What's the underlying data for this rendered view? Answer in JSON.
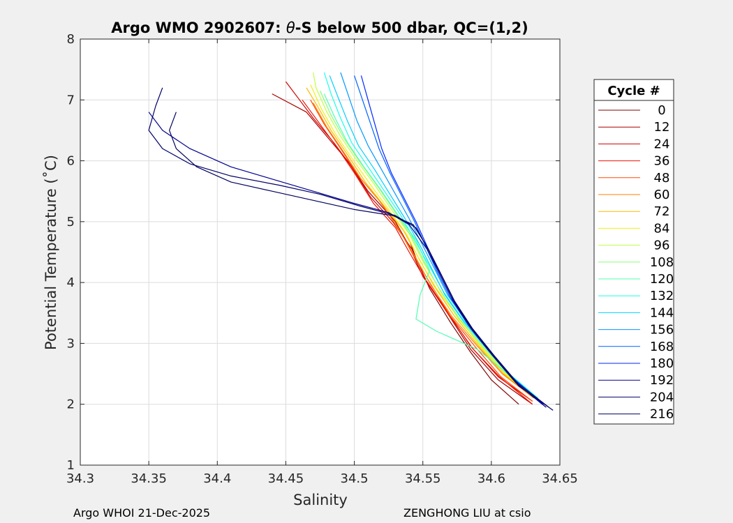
{
  "chart_data": {
    "type": "line",
    "title_prefix": "Argo WMO 2902607: ",
    "title_symbol": "θ",
    "title_suffix": "-S below 500 dbar,  QC=(1,2)",
    "xlabel": "Salinity",
    "ylabel": "Potential Temperature (˚C)",
    "xlim": [
      34.3,
      34.65
    ],
    "ylim": [
      1,
      8
    ],
    "xticks": [
      34.3,
      34.35,
      34.4,
      34.45,
      34.5,
      34.55,
      34.6,
      34.65
    ],
    "xtick_labels": [
      "34.3",
      "34.35",
      "34.4",
      "34.45",
      "34.5",
      "34.55",
      "34.6",
      "34.65"
    ],
    "yticks": [
      1,
      2,
      3,
      4,
      5,
      6,
      7,
      8
    ],
    "ytick_labels": [
      "1",
      "2",
      "3",
      "4",
      "5",
      "6",
      "7",
      "8"
    ],
    "grid": true,
    "legend_title": "Cycle #",
    "legend_position": "outside-right",
    "legend": [
      {
        "label": "0",
        "color": "#800000"
      },
      {
        "label": "12",
        "color": "#a80000"
      },
      {
        "label": "24",
        "color": "#d00000"
      },
      {
        "label": "36",
        "color": "#f01000"
      },
      {
        "label": "48",
        "color": "#ff4800"
      },
      {
        "label": "60",
        "color": "#ff8000"
      },
      {
        "label": "72",
        "color": "#ffb800"
      },
      {
        "label": "84",
        "color": "#f0f010"
      },
      {
        "label": "96",
        "color": "#c0ff40"
      },
      {
        "label": "108",
        "color": "#88ff78"
      },
      {
        "label": "120",
        "color": "#50ffb0"
      },
      {
        "label": "132",
        "color": "#18ffe8"
      },
      {
        "label": "144",
        "color": "#00d0ff"
      },
      {
        "label": "156",
        "color": "#0098ff"
      },
      {
        "label": "168",
        "color": "#0060ff"
      },
      {
        "label": "180",
        "color": "#0028ff"
      },
      {
        "label": "192",
        "color": "#0000f0",
        "line_color": "#00008f"
      },
      {
        "label": "204",
        "color": "#0000c8",
        "line_color": "#00006a"
      },
      {
        "label": "216",
        "color": "#0000a0",
        "line_color": "#000060"
      }
    ],
    "series": [
      {
        "name": "0",
        "color": "#800000",
        "points": [
          [
            34.62,
            2.0
          ],
          [
            34.6,
            2.4
          ],
          [
            34.585,
            2.85
          ],
          [
            34.57,
            3.35
          ],
          [
            34.555,
            3.9
          ],
          [
            34.545,
            4.4
          ],
          [
            34.54,
            4.7
          ]
        ]
      },
      {
        "name": "12",
        "color": "#a80000",
        "points": [
          [
            34.63,
            2.0
          ],
          [
            34.605,
            2.4
          ],
          [
            34.585,
            2.9
          ],
          [
            34.565,
            3.6
          ],
          [
            34.55,
            4.1
          ],
          [
            34.54,
            4.6
          ],
          [
            34.53,
            5.0
          ],
          [
            34.51,
            5.5
          ],
          [
            34.495,
            6.0
          ],
          [
            34.48,
            6.4
          ],
          [
            34.465,
            6.8
          ],
          [
            34.44,
            7.1
          ]
        ]
      },
      {
        "name": "24",
        "color": "#d00000",
        "points": [
          [
            34.63,
            2.05
          ],
          [
            34.605,
            2.45
          ],
          [
            34.585,
            2.95
          ],
          [
            34.567,
            3.55
          ],
          [
            34.552,
            4.05
          ],
          [
            34.542,
            4.55
          ],
          [
            34.528,
            5.0
          ],
          [
            34.512,
            5.4
          ],
          [
            34.498,
            5.9
          ],
          [
            34.485,
            6.3
          ],
          [
            34.47,
            6.7
          ],
          [
            34.46,
            7.0
          ],
          [
            34.45,
            7.3
          ]
        ]
      },
      {
        "name": "36",
        "color": "#f01000",
        "points": [
          [
            34.63,
            2.0
          ],
          [
            34.606,
            2.45
          ],
          [
            34.587,
            2.9
          ],
          [
            34.568,
            3.5
          ],
          [
            34.553,
            4.0
          ],
          [
            34.54,
            4.5
          ],
          [
            34.53,
            4.9
          ],
          [
            34.514,
            5.3
          ],
          [
            34.5,
            5.8
          ],
          [
            34.488,
            6.2
          ],
          [
            34.475,
            6.6
          ],
          [
            34.462,
            7.0
          ]
        ]
      },
      {
        "name": "48",
        "color": "#ff4800",
        "points": [
          [
            34.63,
            2.05
          ],
          [
            34.607,
            2.45
          ],
          [
            34.588,
            2.95
          ],
          [
            34.57,
            3.45
          ],
          [
            34.555,
            4.0
          ],
          [
            34.543,
            4.45
          ],
          [
            34.532,
            4.9
          ],
          [
            34.518,
            5.35
          ],
          [
            34.503,
            5.75
          ],
          [
            34.49,
            6.2
          ],
          [
            34.478,
            6.6
          ],
          [
            34.468,
            7.0
          ]
        ]
      },
      {
        "name": "60",
        "color": "#ff8000",
        "points": [
          [
            34.631,
            2.1
          ],
          [
            34.608,
            2.5
          ],
          [
            34.59,
            2.95
          ],
          [
            34.571,
            3.45
          ],
          [
            34.556,
            3.95
          ],
          [
            34.545,
            4.4
          ],
          [
            34.533,
            4.85
          ],
          [
            34.52,
            5.3
          ],
          [
            34.505,
            5.7
          ],
          [
            34.492,
            6.15
          ],
          [
            34.48,
            6.55
          ],
          [
            34.47,
            6.95
          ]
        ]
      },
      {
        "name": "72",
        "color": "#ffb800",
        "points": [
          [
            34.632,
            2.1
          ],
          [
            34.609,
            2.5
          ],
          [
            34.591,
            2.95
          ],
          [
            34.573,
            3.45
          ],
          [
            34.558,
            3.95
          ],
          [
            34.547,
            4.4
          ],
          [
            34.536,
            4.85
          ],
          [
            34.522,
            5.25
          ],
          [
            34.508,
            5.65
          ],
          [
            34.495,
            6.1
          ],
          [
            34.483,
            6.5
          ],
          [
            34.473,
            6.9
          ],
          [
            34.465,
            7.2
          ]
        ]
      },
      {
        "name": "84",
        "color": "#f0f010",
        "points": [
          [
            34.632,
            2.1
          ],
          [
            34.61,
            2.5
          ],
          [
            34.592,
            2.95
          ],
          [
            34.575,
            3.45
          ],
          [
            34.56,
            3.9
          ],
          [
            34.548,
            4.35
          ],
          [
            34.538,
            4.8
          ],
          [
            34.525,
            5.2
          ],
          [
            34.512,
            5.6
          ],
          [
            34.498,
            6.05
          ],
          [
            34.486,
            6.45
          ],
          [
            34.476,
            6.85
          ],
          [
            34.468,
            7.25
          ]
        ]
      },
      {
        "name": "96",
        "color": "#c0ff40",
        "points": [
          [
            34.633,
            2.1
          ],
          [
            34.611,
            2.5
          ],
          [
            34.593,
            2.95
          ],
          [
            34.576,
            3.4
          ],
          [
            34.562,
            3.9
          ],
          [
            34.55,
            4.35
          ],
          [
            34.54,
            4.8
          ],
          [
            34.527,
            5.2
          ],
          [
            34.515,
            5.6
          ],
          [
            34.502,
            6.0
          ],
          [
            34.49,
            6.4
          ],
          [
            34.48,
            6.8
          ],
          [
            34.472,
            7.2
          ],
          [
            34.47,
            7.45
          ]
        ]
      },
      {
        "name": "108",
        "color": "#88ff78",
        "points": [
          [
            34.633,
            2.1
          ],
          [
            34.612,
            2.5
          ],
          [
            34.594,
            2.95
          ],
          [
            34.577,
            3.4
          ],
          [
            34.563,
            3.85
          ],
          [
            34.552,
            4.3
          ],
          [
            34.542,
            4.75
          ],
          [
            34.53,
            5.15
          ],
          [
            34.518,
            5.55
          ],
          [
            34.505,
            5.95
          ],
          [
            34.493,
            6.35
          ],
          [
            34.483,
            6.75
          ],
          [
            34.475,
            7.15
          ]
        ]
      },
      {
        "name": "120",
        "color": "#50ffb0",
        "points": [
          [
            34.634,
            2.1
          ],
          [
            34.612,
            2.5
          ],
          [
            34.59,
            2.9
          ],
          [
            34.56,
            3.2
          ],
          [
            34.545,
            3.4
          ],
          [
            34.548,
            3.8
          ],
          [
            34.555,
            4.2
          ],
          [
            34.545,
            4.7
          ],
          [
            34.532,
            5.1
          ],
          [
            34.52,
            5.5
          ],
          [
            34.507,
            5.9
          ],
          [
            34.495,
            6.3
          ],
          [
            34.486,
            6.7
          ],
          [
            34.478,
            7.1
          ]
        ]
      },
      {
        "name": "132",
        "color": "#18ffe8",
        "points": [
          [
            34.634,
            2.1
          ],
          [
            34.613,
            2.5
          ],
          [
            34.596,
            2.95
          ],
          [
            34.579,
            3.4
          ],
          [
            34.565,
            3.85
          ],
          [
            34.554,
            4.3
          ],
          [
            34.544,
            4.7
          ],
          [
            34.534,
            5.1
          ],
          [
            34.522,
            5.5
          ],
          [
            34.51,
            5.9
          ],
          [
            34.498,
            6.3
          ],
          [
            34.49,
            6.7
          ],
          [
            34.483,
            7.1
          ],
          [
            34.478,
            7.45
          ]
        ]
      },
      {
        "name": "144",
        "color": "#00d0ff",
        "points": [
          [
            34.635,
            2.05
          ],
          [
            34.614,
            2.45
          ],
          [
            34.597,
            2.9
          ],
          [
            34.58,
            3.35
          ],
          [
            34.566,
            3.8
          ],
          [
            34.556,
            4.25
          ],
          [
            34.547,
            4.65
          ],
          [
            34.537,
            5.05
          ],
          [
            34.526,
            5.45
          ],
          [
            34.515,
            5.85
          ],
          [
            34.503,
            6.25
          ],
          [
            34.495,
            6.65
          ],
          [
            34.488,
            7.05
          ],
          [
            34.482,
            7.4
          ]
        ]
      },
      {
        "name": "156",
        "color": "#0098ff",
        "points": [
          [
            34.636,
            2.05
          ],
          [
            34.615,
            2.45
          ],
          [
            34.598,
            2.9
          ],
          [
            34.582,
            3.35
          ],
          [
            34.568,
            3.8
          ],
          [
            34.558,
            4.25
          ],
          [
            34.549,
            4.65
          ],
          [
            34.54,
            5.05
          ],
          [
            34.53,
            5.45
          ],
          [
            34.52,
            5.85
          ],
          [
            34.51,
            6.25
          ],
          [
            34.502,
            6.65
          ],
          [
            34.496,
            7.05
          ],
          [
            34.49,
            7.45
          ]
        ]
      },
      {
        "name": "168",
        "color": "#0060ff",
        "points": [
          [
            34.637,
            2.0
          ],
          [
            34.616,
            2.4
          ],
          [
            34.599,
            2.85
          ],
          [
            34.583,
            3.3
          ],
          [
            34.57,
            3.75
          ],
          [
            34.56,
            4.2
          ],
          [
            34.552,
            4.6
          ],
          [
            34.544,
            5.0
          ],
          [
            34.535,
            5.4
          ],
          [
            34.526,
            5.8
          ],
          [
            34.518,
            6.2
          ],
          [
            34.512,
            6.6
          ],
          [
            34.506,
            7.0
          ],
          [
            34.5,
            7.4
          ]
        ]
      },
      {
        "name": "180",
        "color": "#0028ff",
        "points": [
          [
            34.638,
            2.0
          ],
          [
            34.617,
            2.4
          ],
          [
            34.6,
            2.85
          ],
          [
            34.584,
            3.3
          ],
          [
            34.571,
            3.75
          ],
          [
            34.561,
            4.2
          ],
          [
            34.553,
            4.6
          ],
          [
            34.545,
            5.0
          ],
          [
            34.536,
            5.4
          ],
          [
            34.527,
            5.8
          ],
          [
            34.52,
            6.2
          ],
          [
            34.515,
            6.6
          ],
          [
            34.51,
            7.0
          ],
          [
            34.505,
            7.4
          ]
        ]
      },
      {
        "name": "192",
        "color": "#00008f",
        "points": [
          [
            34.64,
            1.95
          ],
          [
            34.618,
            2.35
          ],
          [
            34.601,
            2.8
          ],
          [
            34.585,
            3.25
          ],
          [
            34.572,
            3.7
          ],
          [
            34.562,
            4.15
          ],
          [
            34.553,
            4.55
          ],
          [
            34.54,
            4.95
          ],
          [
            34.525,
            5.15
          ],
          [
            34.5,
            5.3
          ],
          [
            34.47,
            5.5
          ],
          [
            34.44,
            5.7
          ],
          [
            34.41,
            5.9
          ],
          [
            34.38,
            6.2
          ],
          [
            34.36,
            6.5
          ],
          [
            34.35,
            6.8
          ]
        ]
      },
      {
        "name": "204",
        "color": "#00006a",
        "points": [
          [
            34.645,
            1.9
          ],
          [
            34.62,
            2.3
          ],
          [
            34.603,
            2.75
          ],
          [
            34.587,
            3.2
          ],
          [
            34.574,
            3.65
          ],
          [
            34.564,
            4.1
          ],
          [
            34.555,
            4.5
          ],
          [
            34.545,
            4.9
          ],
          [
            34.53,
            5.1
          ],
          [
            34.505,
            5.25
          ],
          [
            34.475,
            5.45
          ],
          [
            34.445,
            5.6
          ],
          [
            34.41,
            5.75
          ],
          [
            34.38,
            5.95
          ],
          [
            34.36,
            6.2
          ],
          [
            34.35,
            6.5
          ],
          [
            34.355,
            6.9
          ],
          [
            34.36,
            7.2
          ]
        ]
      },
      {
        "name": "216",
        "color": "#000060",
        "points": [
          [
            34.642,
            1.95
          ],
          [
            34.619,
            2.35
          ],
          [
            34.602,
            2.8
          ],
          [
            34.586,
            3.25
          ],
          [
            34.573,
            3.7
          ],
          [
            34.563,
            4.15
          ],
          [
            34.554,
            4.55
          ],
          [
            34.543,
            4.95
          ],
          [
            34.528,
            5.1
          ],
          [
            34.5,
            5.2
          ],
          [
            34.47,
            5.35
          ],
          [
            34.44,
            5.5
          ],
          [
            34.41,
            5.65
          ],
          [
            34.385,
            5.9
          ],
          [
            34.37,
            6.2
          ],
          [
            34.365,
            6.5
          ],
          [
            34.37,
            6.8
          ]
        ]
      }
    ]
  },
  "footer": {
    "left": "Argo WHOI 21-Dec-2025",
    "right": "ZENGHONG LIU at csio"
  }
}
